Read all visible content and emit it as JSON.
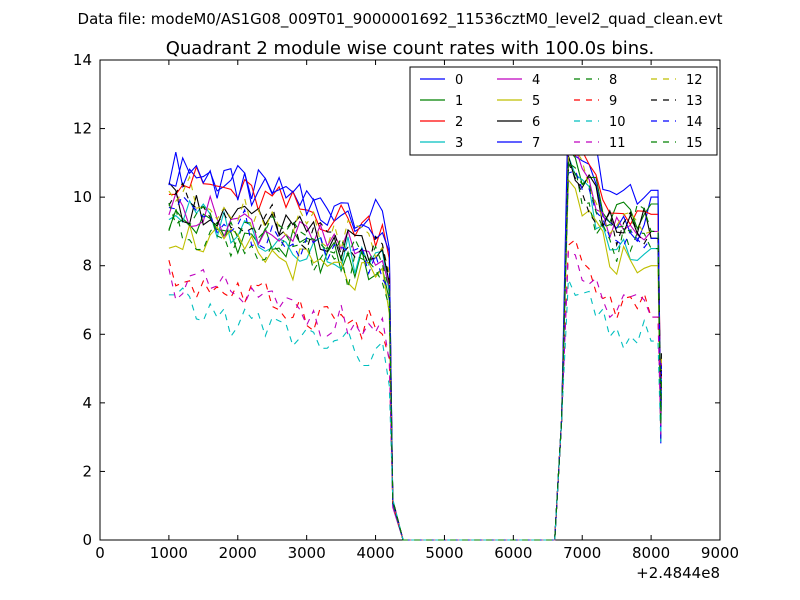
{
  "chart_data": {
    "type": "line",
    "suptitle": "Data file: modeM0/AS1G08_009T01_9000001692_11536cztM0_level2_quad_clean.evt",
    "title": "Quadrant 2 module wise count rates with 100.0s bins.",
    "xlabel": "",
    "ylabel": "",
    "xlim": [
      0,
      9000
    ],
    "ylim": [
      0,
      14
    ],
    "xticks": [
      0,
      1000,
      2000,
      3000,
      4000,
      5000,
      6000,
      7000,
      8000,
      9000
    ],
    "yticks": [
      0,
      2,
      4,
      6,
      8,
      10,
      12,
      14
    ],
    "x_offset_label": "+2.4844e8",
    "legend_position": "top-right",
    "segments": {
      "seg1_start": 1000,
      "seg1_end": 4200,
      "step": 100,
      "drop_times": [
        4200,
        4300,
        4400
      ],
      "gap_end": 6600,
      "seg2_start": 6700,
      "seg2_end": 8100
    },
    "series": [
      {
        "name": "0",
        "color": "#0000ff",
        "style": "solid",
        "level1": 9.3,
        "level2": 9.0,
        "peak": 12.0,
        "end": 10.0
      },
      {
        "name": "1",
        "color": "#008000",
        "style": "solid",
        "level1": 7.8,
        "level2": 9.5,
        "peak": 11.4,
        "end": 9.8
      },
      {
        "name": "2",
        "color": "#ff0000",
        "style": "solid",
        "level1": 9.0,
        "level2": 9.6,
        "peak": 11.9,
        "end": 9.5
      },
      {
        "name": "3",
        "color": "#00bfbf",
        "style": "solid",
        "level1": 8.0,
        "level2": 8.6,
        "peak": 11.2,
        "end": 8.5
      },
      {
        "name": "4",
        "color": "#bf00bf",
        "style": "solid",
        "level1": 8.2,
        "level2": 9.1,
        "peak": 11.5,
        "end": 9.0
      },
      {
        "name": "5",
        "color": "#bfbf00",
        "style": "solid",
        "level1": 7.4,
        "level2": 8.2,
        "peak": 10.5,
        "end": 8.0
      },
      {
        "name": "6",
        "color": "#000000",
        "style": "solid",
        "level1": 8.3,
        "level2": 9.2,
        "peak": 11.2,
        "end": 8.8
      },
      {
        "name": "7",
        "color": "#0000ff",
        "style": "solid",
        "level1": 9.2,
        "level2": 10.2,
        "peak": 13.0,
        "end": 10.2
      },
      {
        "name": "8",
        "color": "#008000",
        "style": "dashed",
        "level1": 7.6,
        "level2": 8.6,
        "peak": 11.0,
        "end": 8.5
      },
      {
        "name": "9",
        "color": "#ff0000",
        "style": "dashed",
        "level1": 6.1,
        "level2": 6.8,
        "peak": 8.6,
        "end": 6.5
      },
      {
        "name": "10",
        "color": "#00bfbf",
        "style": "dashed",
        "level1": 5.3,
        "level2": 6.0,
        "peak": 7.6,
        "end": 5.8
      },
      {
        "name": "11",
        "color": "#bf00bf",
        "style": "dashed",
        "level1": 6.0,
        "level2": 6.7,
        "peak": 8.4,
        "end": 6.5
      },
      {
        "name": "12",
        "color": "#bfbf00",
        "style": "dashed",
        "level1": 8.6,
        "level2": 9.2,
        "peak": 11.3,
        "end": 9.0
      },
      {
        "name": "13",
        "color": "#000000",
        "style": "dashed",
        "level1": 8.4,
        "level2": 9.1,
        "peak": 11.0,
        "end": 9.0
      },
      {
        "name": "14",
        "color": "#0000ff",
        "style": "dashed",
        "level1": 8.1,
        "level2": 9.0,
        "peak": 10.7,
        "end": 8.8
      },
      {
        "name": "15",
        "color": "#008000",
        "style": "dashed",
        "level1": 8.1,
        "level2": 9.3,
        "peak": 11.0,
        "end": 9.0
      }
    ]
  }
}
